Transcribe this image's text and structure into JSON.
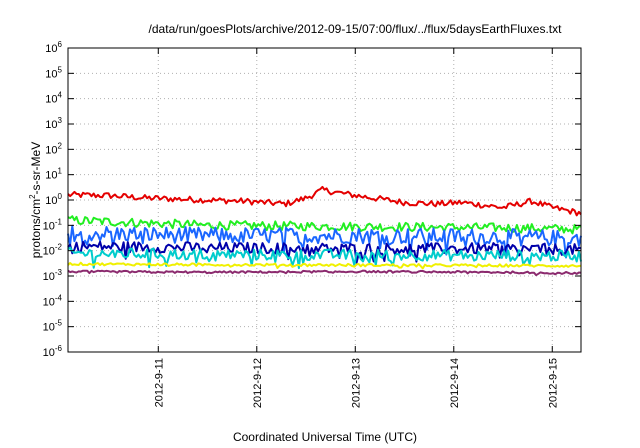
{
  "chart_data": {
    "type": "line",
    "title": "/data/run/goesPlots/archive/2012-09-15/07:00/flux/../flux/5daysEarthFluxes.txt",
    "xlabel": "Coordinated Universal Time (UTC)",
    "ylabel": {
      "pre": "protons/cm",
      "sup": "2",
      "post": "-s-sr-MeV"
    },
    "yscale": "log",
    "ylim": [
      1e-06,
      1000000.0
    ],
    "xlim": [
      "2012-09-10T02:00",
      "2012-09-15T07:00"
    ],
    "grid": true,
    "y_ticks": [
      {
        "value": 1e-06,
        "base": "10",
        "exp": "-6"
      },
      {
        "value": 1e-05,
        "base": "10",
        "exp": "-5"
      },
      {
        "value": 0.0001,
        "base": "10",
        "exp": "-4"
      },
      {
        "value": 0.001,
        "base": "10",
        "exp": "-3"
      },
      {
        "value": 0.01,
        "base": "10",
        "exp": "-2"
      },
      {
        "value": 0.1,
        "base": "10",
        "exp": "-1"
      },
      {
        "value": 1,
        "base": "10",
        "exp": "0"
      },
      {
        "value": 10,
        "base": "10",
        "exp": "1"
      },
      {
        "value": 100,
        "base": "10",
        "exp": "2"
      },
      {
        "value": 1000,
        "base": "10",
        "exp": "3"
      },
      {
        "value": 10000,
        "base": "10",
        "exp": "4"
      },
      {
        "value": 100000,
        "base": "10",
        "exp": "5"
      },
      {
        "value": 1000000,
        "base": "10",
        "exp": "6"
      }
    ],
    "x_ticks": [
      {
        "value": "2012-09-11",
        "label": "2012-9-11"
      },
      {
        "value": "2012-09-12",
        "label": "2012-9-12"
      },
      {
        "value": "2012-09-13",
        "label": "2012-9-13"
      },
      {
        "value": "2012-09-14",
        "label": "2012-9-14"
      },
      {
        "value": "2012-09-15",
        "label": "2012-9-15"
      }
    ],
    "series": [
      {
        "color": "#e40000",
        "x": [
          "2012-09-10T02:00",
          "2012-09-10T12:00",
          "2012-09-10T21:00",
          "2012-09-11T12:00",
          "2012-09-11T21:00",
          "2012-09-12T07:00",
          "2012-09-12T12:00",
          "2012-09-12T16:00",
          "2012-09-12T23:00",
          "2012-09-13T12:00",
          "2012-09-13T20:00",
          "2012-09-14T02:00",
          "2012-09-14T12:00",
          "2012-09-14T19:00",
          "2012-09-15T00:00",
          "2012-09-15T07:00"
        ],
        "y": [
          1.6,
          1.5,
          1.2,
          1.0,
          0.9,
          0.7,
          1.2,
          2.5,
          1.6,
          0.8,
          0.7,
          0.8,
          0.5,
          0.9,
          0.5,
          0.3
        ],
        "noise": 0.12
      },
      {
        "color": "#22ee22",
        "x": [
          "2012-09-10T02:00",
          "2012-09-11T12:00",
          "2012-09-13T00:00",
          "2012-09-14T12:00",
          "2012-09-15T07:00"
        ],
        "y": [
          0.16,
          0.1,
          0.09,
          0.08,
          0.07
        ],
        "noise": 0.18
      },
      {
        "color": "#1a66ff",
        "x": [
          "2012-09-10T02:00",
          "2012-09-11T12:00",
          "2012-09-13T00:00",
          "2012-09-14T12:00",
          "2012-09-15T07:00"
        ],
        "y": [
          0.05,
          0.04,
          0.04,
          0.035,
          0.03
        ],
        "noise": 0.32
      },
      {
        "color": "#0000aa",
        "x": [
          "2012-09-10T02:00",
          "2012-09-11T12:00",
          "2012-09-13T00:00",
          "2012-09-14T12:00",
          "2012-09-15T07:00"
        ],
        "y": [
          0.015,
          0.013,
          0.012,
          0.012,
          0.011
        ],
        "noise": 0.22
      },
      {
        "color": "#00cccc",
        "x": [
          "2012-09-10T02:00",
          "2012-09-11T12:00",
          "2012-09-13T00:00",
          "2012-09-14T12:00",
          "2012-09-15T07:00"
        ],
        "y": [
          0.008,
          0.007,
          0.0068,
          0.0065,
          0.006
        ],
        "noise": 0.22
      },
      {
        "color": "#f0f000",
        "x": [
          "2012-09-10T02:00",
          "2012-09-11T12:00",
          "2012-09-13T00:00",
          "2012-09-14T12:00",
          "2012-09-15T07:00"
        ],
        "y": [
          0.003,
          0.0028,
          0.0027,
          0.0026,
          0.0025
        ],
        "noise": 0.05
      },
      {
        "color": "#8b2a6e",
        "x": [
          "2012-09-10T02:00",
          "2012-09-11T12:00",
          "2012-09-13T00:00",
          "2012-09-14T12:00",
          "2012-09-15T07:00"
        ],
        "y": [
          0.0015,
          0.0014,
          0.0015,
          0.0014,
          0.0013
        ],
        "noise": 0.04
      }
    ]
  }
}
